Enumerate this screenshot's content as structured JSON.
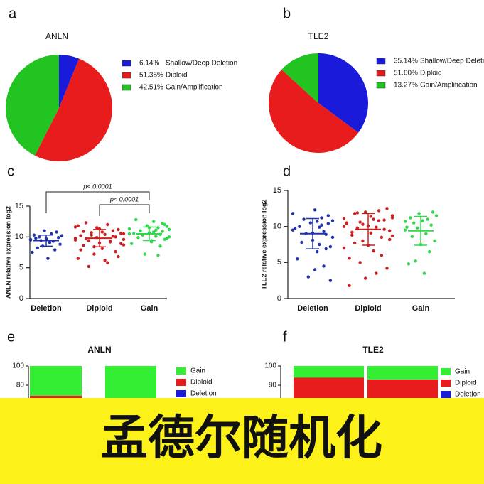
{
  "panels": [
    "a",
    "b",
    "c",
    "d",
    "e",
    "f"
  ],
  "banner": "孟德尔随机化",
  "chart_data": [
    {
      "type": "pie",
      "title": "ANLN",
      "categories": [
        "Shallow/Deep Deletion",
        "Diploid",
        "Gain/Amplification"
      ],
      "values": [
        6.14,
        51.35,
        42.51
      ],
      "value_labels": [
        "6.14%",
        "51.35%",
        "42.51%"
      ],
      "colors": [
        "#1a1adb",
        "#e81c1c",
        "#22c422"
      ]
    },
    {
      "type": "pie",
      "title": "TLE2",
      "categories": [
        "Shallow/Deep Deletion",
        "Diploid",
        "Gain/Amplification"
      ],
      "values": [
        35.14,
        51.6,
        13.27
      ],
      "value_labels": [
        "35.14%",
        "51.60%",
        "13.27%"
      ],
      "colors": [
        "#1a1adb",
        "#e81c1c",
        "#22c422"
      ]
    },
    {
      "type": "dotplot",
      "ylabel": "ANLN relative expression log2",
      "categories": [
        "Deletion",
        "Diploid",
        "Gain"
      ],
      "ylim": [
        0,
        15
      ],
      "yticks": [
        0,
        5,
        10,
        15
      ],
      "annotations": [
        "p< 0.0001",
        "p< 0.0001"
      ],
      "groups": [
        {
          "color": "#2233aa",
          "mean": 9.4,
          "sd": 0.9,
          "values": [
            9.5,
            10.2,
            8.8,
            9.9,
            10.8,
            7.9,
            9.3,
            10.5,
            9.1,
            6.5,
            9.7,
            11.0,
            8.5,
            9.4,
            10.0,
            8.2,
            9.8,
            10.3,
            7.5,
            9.6
          ]
        },
        {
          "color": "#cc1f1f",
          "mean": 9.8,
          "sd": 1.4,
          "values": [
            9.8,
            10.5,
            8.9,
            11.2,
            7.6,
            10.1,
            9.3,
            12.0,
            6.2,
            10.8,
            9.0,
            11.5,
            8.4,
            10.3,
            5.2,
            9.7,
            10.9,
            7.9,
            11.8,
            9.5,
            8.7,
            10.6,
            6.8,
            10.0,
            11.0,
            9.2,
            5.8,
            10.4,
            8.1,
            11.3,
            9.9,
            7.2,
            10.7,
            9.4,
            12.3,
            8.6,
            10.2,
            6.5,
            11.6,
            9.6
          ]
        },
        {
          "color": "#2fd84a",
          "mean": 10.5,
          "sd": 1.1,
          "values": [
            10.5,
            11.2,
            9.8,
            12.0,
            10.9,
            8.5,
            11.5,
            10.1,
            12.5,
            9.4,
            10.7,
            11.8,
            7.2,
            10.3,
            11.0,
            9.9,
            12.8,
            10.6,
            8.9,
            11.3,
            10.0,
            11.7,
            9.6,
            12.2,
            10.4,
            7.0,
            11.1,
            10.8,
            9.2,
            11.5
          ]
        }
      ]
    },
    {
      "type": "dotplot",
      "ylabel": "TLE2 relative expression log2",
      "categories": [
        "Deletion",
        "Diploid",
        "Gain"
      ],
      "ylim": [
        0,
        15
      ],
      "yticks": [
        0,
        5,
        10,
        15
      ],
      "groups": [
        {
          "color": "#2233aa",
          "mean": 9.0,
          "sd": 2.1,
          "values": [
            9.5,
            10.8,
            7.2,
            11.5,
            8.9,
            4.5,
            10.2,
            9.9,
            6.5,
            12.3,
            8.1,
            10.5,
            3.0,
            9.0,
            11.0,
            7.8,
            10.0,
            5.5,
            9.7,
            11.8,
            8.5,
            2.5,
            10.4,
            6.9,
            9.3,
            11.2,
            7.5,
            10.7,
            4.0,
            9.1
          ]
        },
        {
          "color": "#cc1f1f",
          "mean": 9.6,
          "sd": 2.2,
          "values": [
            10.0,
            11.5,
            8.2,
            12.5,
            9.6,
            6.0,
            10.8,
            3.5,
            11.0,
            9.1,
            7.4,
            12.0,
            10.3,
            5.0,
            9.8,
            11.8,
            8.8,
            1.8,
            10.5,
            7.0,
            11.2,
            9.4,
            4.2,
            10.9,
            8.5,
            12.2,
            9.9,
            6.6,
            11.4,
            10.1,
            2.8,
            8.0,
            10.6,
            11.9,
            7.7,
            9.2,
            5.6,
            10.4,
            11.1,
            8.7
          ]
        },
        {
          "color": "#2fd84a",
          "mean": 9.4,
          "sd": 2.0,
          "values": [
            9.5,
            11.5,
            8.0,
            12.0,
            10.2,
            6.5,
            11.0,
            9.0,
            3.5,
            10.8,
            7.5,
            11.8,
            9.8,
            5.2,
            10.5,
            8.6,
            11.2,
            4.8,
            9.9,
            10.7
          ]
        }
      ]
    },
    {
      "type": "stacked_bar",
      "title": "ANLN",
      "categories": [
        null,
        null
      ],
      "ylim": [
        0,
        100
      ],
      "yticks": [
        80,
        100
      ],
      "series": [
        {
          "name": "Gain",
          "color": "#33ee33",
          "values": [
            31,
            45
          ]
        },
        {
          "name": "Diploid",
          "color": "#e81c1c",
          "values": [
            63,
            55
          ]
        },
        {
          "name": "Deletion",
          "color": "#1a1adb",
          "values": [
            6,
            0
          ]
        }
      ]
    },
    {
      "type": "stacked_bar",
      "title": "TLE2",
      "categories": [
        null,
        null
      ],
      "ylim": [
        0,
        100
      ],
      "yticks": [
        80,
        100
      ],
      "series": [
        {
          "name": "Gain",
          "color": "#33ee33",
          "values": [
            12,
            14
          ]
        },
        {
          "name": "Diploid",
          "color": "#e81c1c",
          "values": [
            53,
            56
          ]
        },
        {
          "name": "Deletion",
          "color": "#1a1adb",
          "values": [
            35,
            30
          ]
        }
      ]
    }
  ]
}
